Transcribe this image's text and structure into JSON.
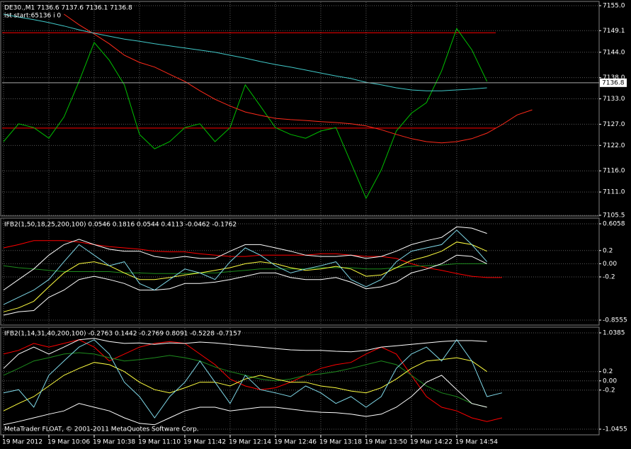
{
  "chart_data": [
    {
      "type": "line",
      "title": "DE30.,M1  7136.6 7137.6 7136.1 7136.8",
      "subtitle": "ist start:65136 i 0",
      "ylim": [
        7105.5,
        7155
      ],
      "yticks": [
        {
          "value": 7155,
          "label": "7155.0"
        },
        7149.1,
        {
          "value": 7144,
          "label": "7144.0"
        },
        {
          "value": 7138,
          "label": "7138.0"
        },
        {
          "value": 7133,
          "label": "7133.0"
        },
        {
          "value": 7127,
          "label": "7127.0"
        },
        {
          "value": 7122,
          "label": "7122.0"
        },
        {
          "value": 7116,
          "label": "7116.0"
        },
        {
          "value": 7111,
          "label": "7111.0"
        },
        7105.5
      ],
      "grid": true,
      "hlines": [
        {
          "value": 7148.6,
          "color": "#ff0000"
        },
        {
          "value": 7126.1,
          "color": "#ff0000"
        }
      ],
      "last_price": 7136.8,
      "series": [
        {
          "color": "#00c000",
          "values": [
            7122.9,
            7127.1,
            7126.2,
            7123.7,
            7128.7,
            7137.1,
            7146.3,
            7142.1,
            7136.3,
            7124.6,
            7121.2,
            7122.9,
            7126.2,
            7127.1,
            7122.9,
            7126.2,
            7136.3,
            7131.3,
            7126.2,
            7124.6,
            7123.7,
            7125.4,
            7126.2,
            7117.9,
            7109.5,
            7116.2,
            7125.4,
            7129.6,
            7132.1,
            7139.6,
            7149.6,
            7144.6,
            7137.1,
            null,
            null,
            null,
            null,
            null,
            null,
            null
          ]
        },
        {
          "color": "#ff2a1a",
          "values": [
            null,
            null,
            null,
            null,
            7153.0,
            7150.5,
            7148.3,
            7146.0,
            7143.3,
            7141.6,
            7140.5,
            7138.8,
            7137.1,
            7134.9,
            7132.9,
            7131.3,
            7129.9,
            7129.1,
            7128.4,
            7128.1,
            7127.9,
            7127.6,
            7127.4,
            7127.1,
            7126.6,
            7125.7,
            7124.6,
            7123.6,
            7122.9,
            7122.6,
            7122.9,
            7123.6,
            7124.9,
            7126.9,
            7129.2,
            7130.4,
            null,
            null,
            null,
            null
          ]
        },
        {
          "color": "#40c8c8",
          "values": [
            7153.0,
            7152.3,
            7151.7,
            7151.0,
            7150.2,
            7149.3,
            7148.5,
            7147.8,
            7147.1,
            7146.6,
            7146.0,
            7145.5,
            7145.0,
            7144.5,
            7144.0,
            7143.3,
            7142.6,
            7141.8,
            7141.1,
            7140.5,
            7139.8,
            7139.1,
            7138.4,
            7137.8,
            7136.9,
            7136.3,
            7135.6,
            7135.1,
            7134.9,
            7134.9,
            7135.1,
            7135.3,
            7135.6,
            null,
            null,
            null,
            null,
            null,
            null,
            null
          ]
        }
      ]
    },
    {
      "type": "line",
      "title": "IFB2(1,50,18,25,200,100) 0.0546 0.1816 0.0544 0.4113 -0.0462 -0.1762",
      "ylim": [
        -0.8555,
        0.6058
      ],
      "yticks": [
        0.6058,
        0.2,
        {
          "value": 0,
          "label": "0.00"
        },
        -0.2,
        -0.8555
      ],
      "grid": true,
      "series": [
        {
          "color": "#ff0000",
          "values": [
            0.24,
            0.29,
            0.35,
            0.35,
            0.35,
            0.33,
            0.29,
            0.26,
            0.24,
            0.22,
            0.19,
            0.18,
            0.18,
            0.15,
            0.13,
            0.11,
            0.11,
            0.13,
            0.13,
            0.13,
            0.13,
            0.15,
            0.15,
            0.13,
            0.11,
            0.11,
            0.08,
            0.0,
            -0.06,
            -0.1,
            -0.15,
            -0.19,
            -0.21,
            -0.21,
            null,
            null,
            null,
            null,
            null,
            null
          ]
        },
        {
          "color": "#1e8c1e",
          "values": [
            -0.03,
            -0.06,
            -0.08,
            -0.1,
            -0.12,
            -0.12,
            -0.12,
            -0.12,
            -0.14,
            -0.14,
            -0.15,
            -0.15,
            -0.15,
            -0.14,
            -0.14,
            -0.12,
            -0.1,
            -0.08,
            -0.08,
            -0.08,
            -0.08,
            -0.06,
            -0.06,
            -0.06,
            -0.08,
            -0.08,
            -0.06,
            -0.04,
            -0.03,
            -0.02,
            0.0,
            0.0,
            0.0,
            null,
            null,
            null,
            null,
            null,
            null,
            null
          ]
        },
        {
          "color": "#ffffff",
          "values": [
            -0.4,
            -0.24,
            -0.08,
            0.13,
            0.29,
            0.37,
            0.29,
            0.22,
            0.19,
            0.19,
            0.11,
            0.08,
            0.11,
            0.08,
            0.08,
            0.19,
            0.29,
            0.29,
            0.24,
            0.19,
            0.13,
            0.11,
            0.11,
            0.13,
            0.08,
            0.11,
            0.19,
            0.29,
            0.35,
            0.4,
            0.56,
            0.54,
            0.46,
            null,
            null,
            null,
            null,
            null,
            null,
            null
          ]
        },
        {
          "color": "#ffffff",
          "values": [
            -0.78,
            -0.73,
            -0.71,
            -0.51,
            -0.4,
            -0.24,
            -0.19,
            -0.24,
            -0.3,
            -0.4,
            -0.4,
            -0.38,
            -0.3,
            -0.3,
            -0.28,
            -0.24,
            -0.19,
            -0.14,
            -0.14,
            -0.21,
            -0.24,
            -0.24,
            -0.21,
            -0.28,
            -0.38,
            -0.35,
            -0.28,
            -0.14,
            -0.08,
            0.0,
            0.13,
            0.11,
            0.0,
            null,
            null,
            null,
            null,
            null,
            null,
            null
          ]
        },
        {
          "color": "#ffff40",
          "values": [
            -0.73,
            -0.67,
            -0.57,
            -0.35,
            -0.14,
            0.0,
            0.03,
            -0.03,
            -0.14,
            -0.24,
            -0.24,
            -0.21,
            -0.17,
            -0.14,
            -0.1,
            -0.06,
            0.0,
            0.03,
            0.0,
            -0.06,
            -0.1,
            -0.08,
            -0.04,
            -0.08,
            -0.19,
            -0.17,
            -0.06,
            0.05,
            0.11,
            0.19,
            0.33,
            0.29,
            0.19,
            null,
            null,
            null,
            null,
            null,
            null,
            null
          ]
        },
        {
          "color": "#7fd8e8",
          "values": [
            -0.62,
            -0.51,
            -0.4,
            -0.24,
            0.03,
            0.29,
            0.13,
            -0.03,
            0.03,
            -0.3,
            -0.4,
            -0.24,
            -0.08,
            -0.14,
            -0.24,
            0.03,
            0.24,
            0.13,
            -0.03,
            -0.14,
            -0.08,
            -0.03,
            0.03,
            -0.24,
            -0.35,
            -0.24,
            0.03,
            0.19,
            0.24,
            0.29,
            0.51,
            0.29,
            0.03,
            null,
            null,
            null,
            null,
            null,
            null,
            null
          ]
        }
      ]
    },
    {
      "type": "line",
      "title": "IFB2(1,14,31,40,200,100) -0.2763 0.1442 -0.2769 0.8091 -0.5228 -0.7157",
      "ylim": [
        -1.0455,
        1.0385
      ],
      "yticks": [
        1.0385,
        0.2,
        {
          "value": 0,
          "label": "0.00"
        },
        -0.2,
        -1.0455
      ],
      "grid": true,
      "categories": [
        "19 Mar 2012",
        null,
        null,
        "19 Mar 10:06",
        null,
        null,
        "19 Mar 10:38",
        null,
        null,
        "19 Mar 11:10",
        null,
        null,
        "19 Mar 11:42",
        null,
        null,
        "19 Mar 12:14",
        null,
        null,
        "19 Mar 12:46",
        null,
        null,
        "19 Mar 13:18",
        null,
        null,
        "19 Mar 13:50",
        null,
        null,
        "19 Mar 14:22",
        null,
        null,
        "19 Mar 14:54",
        null,
        null,
        null,
        null,
        null,
        null,
        null,
        null,
        null
      ],
      "series": [
        {
          "color": "#ff0000",
          "values": [
            0.58,
            0.66,
            0.81,
            0.73,
            0.81,
            0.89,
            0.73,
            0.43,
            0.58,
            0.73,
            0.81,
            0.85,
            0.81,
            0.58,
            0.35,
            0.04,
            -0.11,
            -0.19,
            -0.15,
            -0.03,
            0.12,
            0.27,
            0.35,
            0.4,
            0.58,
            0.73,
            0.58,
            0.12,
            -0.34,
            -0.57,
            -0.65,
            -0.8,
            -0.88,
            -0.8,
            null,
            null,
            null,
            null,
            null,
            null
          ]
        },
        {
          "color": "#1e8c1e",
          "values": [
            0.12,
            0.27,
            0.43,
            0.5,
            0.58,
            0.61,
            0.58,
            0.5,
            0.43,
            0.46,
            0.5,
            0.55,
            0.5,
            0.43,
            0.3,
            0.2,
            0.12,
            0.04,
            0.0,
            0.04,
            0.12,
            0.15,
            0.2,
            0.27,
            0.35,
            0.43,
            0.35,
            0.12,
            -0.11,
            -0.26,
            -0.34,
            -0.49,
            -0.57,
            null,
            null,
            null,
            null,
            null,
            null,
            null
          ]
        },
        {
          "color": "#ffffff",
          "values": [
            0.27,
            0.58,
            0.73,
            0.58,
            0.73,
            0.89,
            0.92,
            0.85,
            0.81,
            0.82,
            0.79,
            0.82,
            0.81,
            0.84,
            0.82,
            0.79,
            0.76,
            0.73,
            0.7,
            0.67,
            0.66,
            0.66,
            0.64,
            0.63,
            0.66,
            0.73,
            0.76,
            0.79,
            0.82,
            0.85,
            0.87,
            0.87,
            0.85,
            null,
            null,
            null,
            null,
            null,
            null,
            null
          ]
        },
        {
          "color": "#ffffff",
          "values": [
            -0.95,
            -0.88,
            -0.8,
            -0.72,
            -0.65,
            -0.49,
            -0.57,
            -0.65,
            -0.8,
            -0.92,
            -0.95,
            -0.8,
            -0.65,
            -0.57,
            -0.57,
            -0.65,
            -0.61,
            -0.57,
            -0.57,
            -0.61,
            -0.65,
            -0.68,
            -0.69,
            -0.72,
            -0.77,
            -0.72,
            -0.57,
            -0.34,
            -0.03,
            0.12,
            -0.19,
            -0.49,
            -0.57,
            null,
            null,
            null,
            null,
            null,
            null,
            null
          ]
        },
        {
          "color": "#ffff40",
          "values": [
            -0.65,
            -0.49,
            -0.34,
            -0.11,
            0.12,
            0.27,
            0.4,
            0.35,
            0.2,
            -0.03,
            -0.19,
            -0.26,
            -0.15,
            -0.03,
            -0.03,
            -0.11,
            0.04,
            0.12,
            0.04,
            -0.03,
            -0.03,
            -0.11,
            -0.15,
            -0.22,
            -0.26,
            -0.15,
            0.04,
            0.27,
            0.43,
            0.46,
            0.5,
            0.43,
            0.2,
            null,
            null,
            null,
            null,
            null,
            null,
            null
          ]
        },
        {
          "color": "#7fd8e8",
          "values": [
            -0.26,
            -0.19,
            -0.57,
            0.12,
            0.43,
            0.73,
            0.89,
            0.58,
            -0.03,
            -0.34,
            -0.8,
            -0.34,
            -0.03,
            0.43,
            -0.03,
            -0.49,
            0.12,
            -0.19,
            -0.26,
            -0.34,
            -0.11,
            -0.26,
            -0.49,
            -0.34,
            -0.57,
            -0.34,
            0.27,
            0.58,
            0.73,
            0.43,
            0.89,
            0.43,
            -0.34,
            -0.26,
            null,
            null,
            null,
            null,
            null,
            null
          ]
        }
      ]
    }
  ],
  "footer": "MetaTrader FLOAT, © 2001-2011 MetaQuotes Software Corp."
}
